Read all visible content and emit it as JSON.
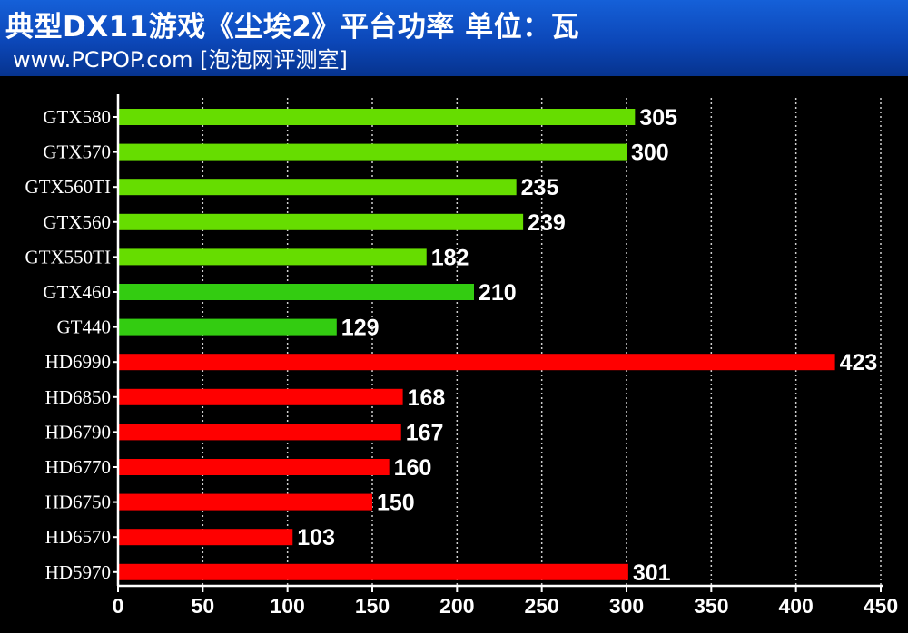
{
  "header": {
    "title": "典型DX11游戏《尘埃2》平台功率  单位：瓦",
    "subtitle": "www.PCPOP.com [泡泡网评测室]"
  },
  "colors": {
    "green_light": "#66dd00",
    "green": "#33cc11",
    "red": "#ff0000",
    "background": "#000000",
    "header_blue": "#0c47b8",
    "text": "#ffffff"
  },
  "chart_data": {
    "type": "bar",
    "orientation": "horizontal",
    "title": "典型DX11游戏《尘埃2》平台功率  单位：瓦",
    "subtitle": "www.PCPOP.com [泡泡网评测室]",
    "categories": [
      "GTX580",
      "GTX570",
      "GTX560TI",
      "GTX560",
      "GTX550TI",
      "GTX460",
      "GT440",
      "HD6990",
      "HD6850",
      "HD6790",
      "HD6770",
      "HD6750",
      "HD6570",
      "HD5970"
    ],
    "values": [
      305,
      300,
      235,
      239,
      182,
      210,
      129,
      423,
      168,
      167,
      160,
      150,
      103,
      301
    ],
    "bar_colors": [
      "#66dd00",
      "#66dd00",
      "#66dd00",
      "#66dd00",
      "#66dd00",
      "#33cc11",
      "#33cc11",
      "#ff0000",
      "#ff0000",
      "#ff0000",
      "#ff0000",
      "#ff0000",
      "#ff0000",
      "#ff0000"
    ],
    "xlim": [
      0,
      450
    ],
    "xticks": [
      0,
      50,
      100,
      150,
      200,
      250,
      300,
      350,
      400,
      450
    ],
    "grid": true,
    "data_labels": true,
    "legend": "none"
  }
}
